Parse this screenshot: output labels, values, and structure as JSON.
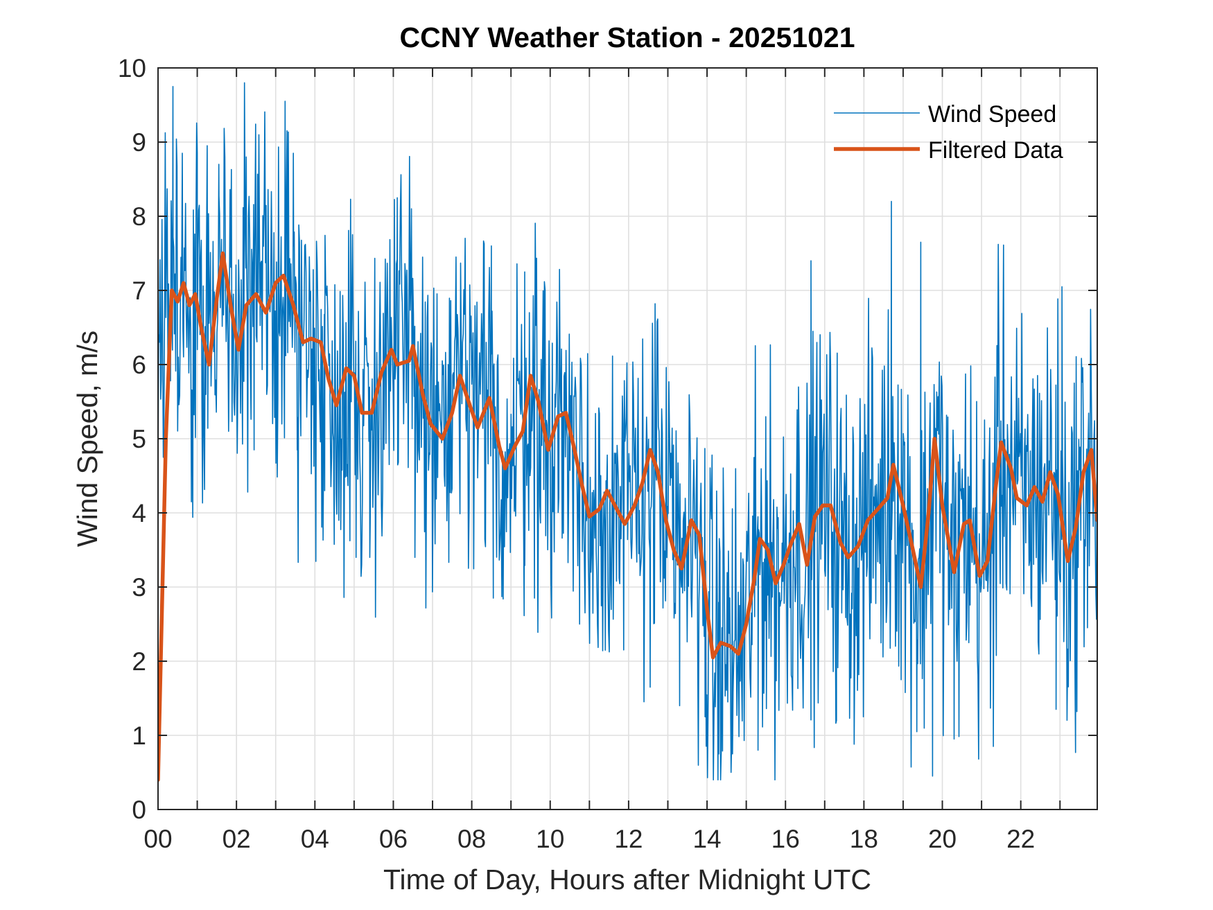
{
  "chart_data": {
    "type": "line",
    "title": "CCNY Weather Station - 20251021",
    "xlabel": "Time of Day, Hours after Midnight UTC",
    "ylabel": "Wind Speed, m/s",
    "xlim": [
      0,
      23.95
    ],
    "ylim": [
      0,
      10
    ],
    "xticks": [
      0,
      2,
      4,
      6,
      8,
      10,
      12,
      14,
      16,
      18,
      20,
      22
    ],
    "xtick_labels": [
      "00",
      "02",
      "04",
      "06",
      "08",
      "10",
      "12",
      "14",
      "16",
      "18",
      "20",
      "22"
    ],
    "yticks": [
      0,
      1,
      2,
      3,
      4,
      5,
      6,
      7,
      8,
      9,
      10
    ],
    "ytick_labels": [
      "0",
      "1",
      "2",
      "3",
      "4",
      "5",
      "6",
      "7",
      "8",
      "9",
      "10"
    ],
    "grid": true,
    "grid_x_step_hours": 1,
    "grid_y_step": 1,
    "legend": {
      "location": "top-right",
      "boxed": false
    },
    "series": [
      {
        "name": "Wind Speed",
        "color": "#0072BD",
        "style": "thin",
        "sample_step_hours": 0.0167,
        "typical_spread_about_trend": 1.6,
        "notable_points": [
          [
            0.0,
            9.7
          ],
          [
            0.02,
            6.4
          ],
          [
            0.38,
            9.75
          ],
          [
            0.85,
            4.15
          ],
          [
            1.0,
            8.85
          ],
          [
            1.55,
            8.7
          ],
          [
            1.8,
            5.1
          ],
          [
            2.25,
            8.8
          ],
          [
            2.45,
            4.85
          ],
          [
            3.45,
            8.85
          ],
          [
            3.55,
            4.85
          ],
          [
            4.25,
            4.3
          ],
          [
            5.05,
            3.4
          ],
          [
            5.4,
            3.4
          ],
          [
            6.1,
            8.25
          ],
          [
            6.55,
            3.4
          ],
          [
            8.5,
            7.6
          ],
          [
            8.55,
            2.85
          ],
          [
            9.35,
            7.25
          ],
          [
            9.6,
            2.85
          ],
          [
            10.75,
            2.5
          ],
          [
            12.55,
            1.65
          ],
          [
            13.3,
            1.4
          ],
          [
            13.95,
            1.25
          ],
          [
            14.3,
            0.75
          ],
          [
            14.65,
            0.75
          ],
          [
            15.3,
            0.8
          ],
          [
            16.65,
            7.4
          ],
          [
            17.3,
            1.2
          ],
          [
            18.7,
            8.2
          ],
          [
            18.95,
            1.75
          ],
          [
            19.35,
            1.05
          ],
          [
            19.45,
            7.65
          ],
          [
            19.75,
            0.45
          ],
          [
            20.3,
            0.95
          ],
          [
            21.3,
            0.85
          ],
          [
            21.55,
            6.5
          ],
          [
            22.9,
            1.35
          ],
          [
            23.05,
            7.05
          ],
          [
            23.7,
            2.45
          ],
          [
            23.95,
            5.7
          ]
        ]
      },
      {
        "name": "Filtered Data",
        "color": "#D95319",
        "style": "thick",
        "points": [
          [
            0.0,
            0.4
          ],
          [
            0.2,
            5.0
          ],
          [
            0.35,
            7.0
          ],
          [
            0.5,
            6.85
          ],
          [
            0.65,
            7.1
          ],
          [
            0.8,
            6.8
          ],
          [
            0.95,
            6.95
          ],
          [
            1.1,
            6.5
          ],
          [
            1.3,
            6.0
          ],
          [
            1.5,
            6.9
          ],
          [
            1.65,
            7.5
          ],
          [
            1.85,
            6.8
          ],
          [
            2.05,
            6.2
          ],
          [
            2.25,
            6.8
          ],
          [
            2.5,
            6.95
          ],
          [
            2.75,
            6.7
          ],
          [
            3.0,
            7.1
          ],
          [
            3.2,
            7.2
          ],
          [
            3.45,
            6.8
          ],
          [
            3.7,
            6.3
          ],
          [
            3.9,
            6.35
          ],
          [
            4.15,
            6.3
          ],
          [
            4.35,
            5.8
          ],
          [
            4.55,
            5.45
          ],
          [
            4.8,
            5.95
          ],
          [
            5.0,
            5.85
          ],
          [
            5.2,
            5.35
          ],
          [
            5.45,
            5.35
          ],
          [
            5.7,
            5.9
          ],
          [
            5.95,
            6.2
          ],
          [
            6.1,
            6.0
          ],
          [
            6.4,
            6.05
          ],
          [
            6.5,
            6.25
          ],
          [
            6.75,
            5.6
          ],
          [
            6.95,
            5.2
          ],
          [
            7.25,
            5.0
          ],
          [
            7.5,
            5.35
          ],
          [
            7.7,
            5.85
          ],
          [
            7.95,
            5.45
          ],
          [
            8.15,
            5.15
          ],
          [
            8.45,
            5.55
          ],
          [
            8.7,
            4.9
          ],
          [
            8.85,
            4.6
          ],
          [
            9.1,
            4.9
          ],
          [
            9.3,
            5.1
          ],
          [
            9.5,
            5.85
          ],
          [
            9.7,
            5.5
          ],
          [
            9.95,
            4.85
          ],
          [
            10.2,
            5.3
          ],
          [
            10.4,
            5.35
          ],
          [
            10.6,
            4.9
          ],
          [
            10.8,
            4.4
          ],
          [
            11.0,
            3.95
          ],
          [
            11.25,
            4.05
          ],
          [
            11.45,
            4.3
          ],
          [
            11.65,
            4.1
          ],
          [
            11.9,
            3.85
          ],
          [
            12.15,
            4.1
          ],
          [
            12.35,
            4.4
          ],
          [
            12.55,
            4.85
          ],
          [
            12.75,
            4.55
          ],
          [
            12.95,
            3.9
          ],
          [
            13.15,
            3.5
          ],
          [
            13.35,
            3.25
          ],
          [
            13.6,
            3.9
          ],
          [
            13.8,
            3.7
          ],
          [
            14.0,
            2.7
          ],
          [
            14.15,
            2.05
          ],
          [
            14.35,
            2.25
          ],
          [
            14.6,
            2.2
          ],
          [
            14.8,
            2.1
          ],
          [
            15.0,
            2.5
          ],
          [
            15.2,
            3.1
          ],
          [
            15.35,
            3.65
          ],
          [
            15.55,
            3.5
          ],
          [
            15.75,
            3.05
          ],
          [
            15.95,
            3.3
          ],
          [
            16.15,
            3.6
          ],
          [
            16.35,
            3.85
          ],
          [
            16.55,
            3.3
          ],
          [
            16.75,
            3.95
          ],
          [
            16.95,
            4.1
          ],
          [
            17.15,
            4.1
          ],
          [
            17.4,
            3.6
          ],
          [
            17.6,
            3.4
          ],
          [
            17.85,
            3.55
          ],
          [
            18.1,
            3.9
          ],
          [
            18.35,
            4.05
          ],
          [
            18.6,
            4.2
          ],
          [
            18.75,
            4.65
          ],
          [
            19.0,
            4.1
          ],
          [
            19.25,
            3.5
          ],
          [
            19.45,
            3.0
          ],
          [
            19.65,
            4.0
          ],
          [
            19.8,
            5.0
          ],
          [
            20.0,
            4.1
          ],
          [
            20.3,
            3.2
          ],
          [
            20.55,
            3.85
          ],
          [
            20.7,
            3.9
          ],
          [
            20.95,
            3.15
          ],
          [
            21.15,
            3.35
          ],
          [
            21.35,
            4.3
          ],
          [
            21.5,
            4.95
          ],
          [
            21.75,
            4.6
          ],
          [
            21.9,
            4.2
          ],
          [
            22.15,
            4.1
          ],
          [
            22.35,
            4.35
          ],
          [
            22.55,
            4.15
          ],
          [
            22.75,
            4.55
          ],
          [
            22.95,
            4.25
          ],
          [
            23.2,
            3.35
          ],
          [
            23.4,
            3.8
          ],
          [
            23.6,
            4.55
          ],
          [
            23.8,
            4.85
          ],
          [
            23.95,
            3.9
          ]
        ]
      }
    ]
  }
}
